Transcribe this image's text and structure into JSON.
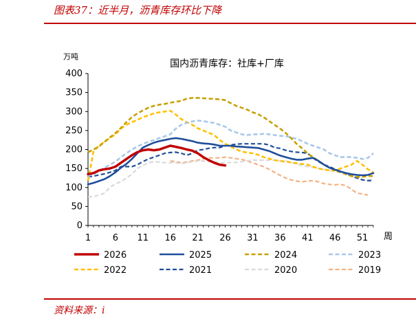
{
  "header": {
    "title": "图表37：近半月，沥青库存环比下降"
  },
  "footer": {
    "source": "资料来源：i"
  },
  "chart_data": {
    "type": "line",
    "title": "国内沥青库存：社库+厂库",
    "ylabel": "万吨",
    "xlabel": "周",
    "ylim": [
      0,
      400
    ],
    "yticks": [
      0,
      50,
      100,
      150,
      200,
      250,
      300,
      350,
      400
    ],
    "xlim": [
      1,
      53
    ],
    "xticks": [
      1,
      6,
      11,
      16,
      21,
      26,
      31,
      36,
      41,
      46,
      51
    ],
    "grid": false,
    "legend": "bottom",
    "series": [
      {
        "name": "2026",
        "color": "#c00000",
        "dash": "solid",
        "width": 3.5,
        "x": [
          1,
          2,
          3,
          4,
          5,
          6,
          7,
          8,
          9,
          10,
          11,
          12,
          13,
          14,
          15,
          16,
          17,
          18,
          19,
          20,
          21,
          22,
          23,
          24,
          25,
          26
        ],
        "values": [
          135,
          138,
          145,
          148,
          150,
          155,
          165,
          175,
          185,
          193,
          198,
          200,
          198,
          200,
          205,
          210,
          207,
          204,
          200,
          197,
          190,
          180,
          172,
          165,
          160,
          158
        ]
      },
      {
        "name": "2025",
        "color": "#1f4e9a",
        "dash": "solid",
        "width": 2.6,
        "x": [
          1,
          2,
          3,
          4,
          5,
          6,
          7,
          8,
          9,
          10,
          11,
          12,
          13,
          14,
          15,
          16,
          17,
          18,
          19,
          20,
          21,
          22,
          23,
          24,
          25,
          26,
          27,
          28,
          29,
          30,
          31,
          32,
          33,
          34,
          35,
          36,
          37,
          38,
          39,
          40,
          41,
          42,
          43,
          44,
          45,
          46,
          47,
          48,
          49,
          50,
          51,
          52,
          53
        ],
        "values": [
          108,
          112,
          117,
          122,
          130,
          140,
          152,
          162,
          175,
          190,
          205,
          212,
          218,
          222,
          225,
          228,
          230,
          228,
          225,
          222,
          218,
          216,
          215,
          213,
          210,
          210,
          210,
          208,
          207,
          206,
          205,
          204,
          200,
          196,
          190,
          184,
          180,
          176,
          173,
          173,
          176,
          178,
          170,
          160,
          152,
          147,
          142,
          138,
          135,
          133,
          132,
          133,
          138
        ]
      },
      {
        "name": "2024",
        "color": "#c8a000",
        "dash": "dash",
        "width": 2.6,
        "x": [
          1,
          2,
          3,
          4,
          5,
          6,
          7,
          8,
          9,
          10,
          11,
          12,
          13,
          14,
          15,
          16,
          17,
          18,
          19,
          20,
          21,
          22,
          23,
          24,
          25,
          26,
          27,
          28,
          29,
          30,
          31,
          32,
          33,
          34,
          35,
          36,
          37,
          38,
          39,
          40,
          41,
          42,
          43,
          44,
          45,
          46,
          47,
          48,
          49,
          50,
          51,
          52,
          53
        ],
        "values": [
          193,
          200,
          208,
          220,
          232,
          243,
          257,
          272,
          285,
          295,
          303,
          310,
          315,
          318,
          320,
          323,
          326,
          328,
          334,
          336,
          336,
          335,
          334,
          333,
          332,
          330,
          322,
          315,
          310,
          305,
          298,
          293,
          285,
          275,
          265,
          255,
          244,
          230,
          215,
          203,
          190,
          180,
          170,
          160,
          152,
          145,
          140,
          135,
          130,
          128,
          128,
          130,
          130
        ]
      },
      {
        "name": "2023",
        "color": "#a8c8e8",
        "dash": "dash",
        "width": 2.6,
        "x": [
          1,
          2,
          3,
          4,
          5,
          6,
          7,
          8,
          9,
          10,
          11,
          12,
          13,
          14,
          15,
          16,
          17,
          18,
          19,
          20,
          21,
          22,
          23,
          24,
          25,
          26,
          27,
          28,
          29,
          30,
          31,
          32,
          33,
          34,
          35,
          36,
          37,
          38,
          39,
          40,
          41,
          42,
          43,
          44,
          45,
          46,
          47,
          48,
          49,
          50,
          51,
          52,
          53
        ],
        "values": [
          130,
          135,
          143,
          152,
          160,
          168,
          180,
          190,
          200,
          208,
          215,
          220,
          225,
          230,
          235,
          240,
          255,
          265,
          270,
          274,
          276,
          275,
          272,
          270,
          265,
          260,
          250,
          245,
          240,
          238,
          240,
          240,
          241,
          240,
          238,
          236,
          235,
          232,
          228,
          222,
          215,
          210,
          205,
          200,
          190,
          185,
          180,
          180,
          180,
          178,
          175,
          178,
          190
        ]
      },
      {
        "name": "2022",
        "color": "#ffc000",
        "dash": "dash",
        "width": 2.6,
        "x": [
          1,
          2,
          3,
          4,
          5,
          6,
          7,
          8,
          9,
          10,
          11,
          12,
          13,
          14,
          15,
          16,
          17,
          18,
          19,
          20,
          21,
          22,
          23,
          24,
          25,
          26,
          27,
          28,
          29,
          30,
          31,
          32,
          33,
          34,
          35,
          36,
          37,
          38,
          39,
          40,
          41,
          42,
          43,
          44,
          45,
          46,
          47,
          48,
          49,
          50,
          51,
          52,
          53
        ],
        "values": [
          118,
          195,
          210,
          220,
          230,
          240,
          255,
          265,
          272,
          278,
          285,
          290,
          295,
          298,
          300,
          302,
          292,
          280,
          272,
          265,
          256,
          250,
          244,
          238,
          225,
          215,
          208,
          200,
          195,
          192,
          190,
          186,
          180,
          176,
          172,
          170,
          168,
          166,
          164,
          162,
          160,
          155,
          150,
          147,
          145,
          145,
          150,
          155,
          160,
          170,
          160,
          148,
          140
        ]
      },
      {
        "name": "2021",
        "color": "#1f4e9a",
        "dash": "dash",
        "width": 2.2,
        "x": [
          1,
          2,
          3,
          4,
          5,
          6,
          7,
          8,
          9,
          10,
          11,
          12,
          13,
          14,
          15,
          16,
          17,
          18,
          19,
          20,
          21,
          22,
          23,
          24,
          25,
          26,
          27,
          28,
          29,
          30,
          31,
          32,
          33,
          34,
          35,
          36,
          37,
          38,
          39,
          40,
          41,
          42,
          43,
          44,
          45,
          46,
          47,
          48,
          49,
          50,
          51,
          52,
          53
        ],
        "values": [
          128,
          130,
          133,
          136,
          140,
          145,
          155,
          155,
          155,
          160,
          168,
          175,
          180,
          185,
          190,
          192,
          193,
          190,
          185,
          190,
          198,
          200,
          203,
          205,
          205,
          210,
          212,
          214,
          215,
          215,
          215,
          215,
          215,
          212,
          205,
          203,
          198,
          195,
          193,
          192,
          190,
          178,
          168,
          160,
          155,
          148,
          143,
          137,
          130,
          125,
          120,
          118,
          118
        ]
      },
      {
        "name": "2020",
        "color": "#d9d9d9",
        "dash": "dash",
        "width": 2.2,
        "x": [
          1,
          2,
          3,
          4,
          5,
          6,
          7,
          8,
          9,
          10,
          11,
          12,
          13,
          14,
          15,
          16,
          17,
          18,
          19,
          20,
          21,
          22,
          23,
          24,
          25,
          26,
          27,
          28,
          29,
          30,
          31,
          32,
          33,
          34,
          35,
          36,
          37,
          38,
          39,
          40,
          41,
          42,
          43,
          44,
          45,
          46,
          47,
          48,
          49,
          50,
          51,
          52,
          53
        ],
        "values": [
          75,
          76,
          80,
          85,
          100,
          110,
          115,
          125,
          135,
          150,
          158,
          165,
          168,
          167,
          165,
          165,
          165,
          163,
          165,
          168,
          170,
          170,
          168,
          167,
          165,
          165,
          166,
          166,
          168,
          170,
          172,
          172,
          172,
          172,
          172,
          170,
          170,
          166,
          162,
          158,
          155,
          153,
          150,
          148,
          145,
          142,
          140,
          138,
          130,
          125,
          120,
          120,
          122
        ]
      },
      {
        "name": "2019",
        "color": "#f4b183",
        "dash": "dash",
        "width": 2.2,
        "x": [
          16,
          17,
          18,
          19,
          20,
          21,
          22,
          23,
          24,
          25,
          26,
          27,
          28,
          29,
          30,
          31,
          32,
          33,
          34,
          35,
          36,
          37,
          38,
          39,
          40,
          41,
          42,
          43,
          44,
          45,
          46,
          47,
          48,
          49,
          50,
          51,
          52
        ],
        "values": [
          170,
          168,
          165,
          167,
          170,
          172,
          175,
          178,
          178,
          178,
          180,
          178,
          176,
          174,
          170,
          165,
          160,
          155,
          148,
          140,
          132,
          125,
          120,
          117,
          115,
          117,
          118,
          115,
          110,
          108,
          107,
          108,
          105,
          95,
          85,
          83,
          80
        ]
      }
    ]
  }
}
